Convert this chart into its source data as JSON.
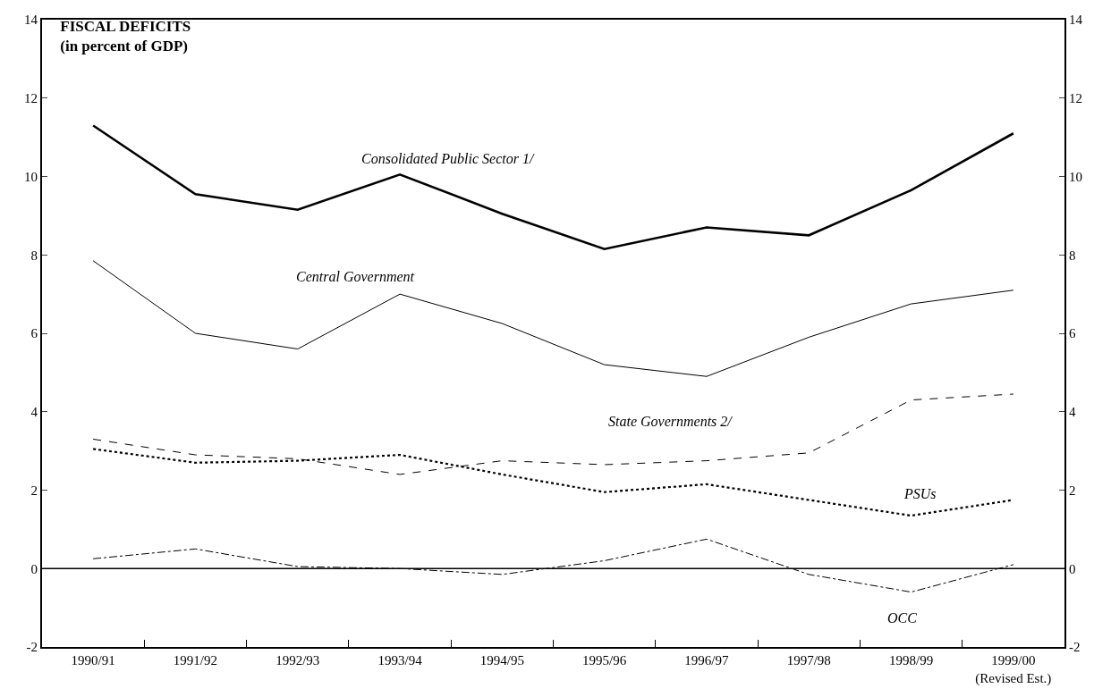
{
  "chart_data": {
    "type": "line",
    "title": "FISCAL DEFICITS",
    "subtitle": "(in percent of GDP)",
    "categories": [
      "1990/91",
      "1991/92",
      "1992/93",
      "1993/94",
      "1994/95",
      "1995/96",
      "1996/97",
      "1997/98",
      "1998/99",
      "1999/00\n(Revised Est.)"
    ],
    "series": [
      {
        "name": "Consolidated Public Sector 1/",
        "color": "#000000",
        "line_style": "solid",
        "values": [
          11.3,
          9.55,
          9.15,
          10.05,
          9.05,
          8.15,
          8.7,
          8.5,
          9.65,
          11.1
        ]
      },
      {
        "name": "Central Government",
        "color": "#000000",
        "line_style": "solid",
        "values": [
          7.85,
          6.0,
          5.6,
          7.0,
          6.25,
          5.2,
          4.9,
          5.9,
          6.75,
          7.1
        ]
      },
      {
        "name": "State Governments 2/",
        "color": "#000000",
        "line_style": "dashed",
        "values": [
          3.3,
          2.9,
          2.8,
          2.4,
          2.75,
          2.65,
          2.75,
          2.95,
          4.3,
          4.45
        ]
      },
      {
        "name": "PSUs",
        "color": "#000000",
        "line_style": "dotted",
        "values": [
          3.05,
          2.7,
          2.75,
          2.9,
          2.4,
          1.95,
          2.15,
          1.75,
          1.35,
          1.75
        ]
      },
      {
        "name": "OCC",
        "color": "#000000",
        "line_style": "dashed",
        "values": [
          0.25,
          0.5,
          0.05,
          0.0,
          -0.15,
          0.2,
          0.75,
          -0.15,
          -0.6,
          0.1
        ]
      }
    ],
    "ylim": [
      -2,
      14
    ],
    "yticks": [
      -2,
      0,
      2,
      4,
      6,
      8,
      10,
      12,
      14
    ],
    "y2lim": [
      -2,
      14
    ],
    "y2ticks": [
      -2,
      0,
      2,
      4,
      6,
      8,
      10,
      12,
      14
    ],
    "ref_lines": [
      {
        "axis": "y",
        "value": 0,
        "color": "#000000",
        "line_style": "solid"
      }
    ],
    "legend": false,
    "marker": "none"
  }
}
